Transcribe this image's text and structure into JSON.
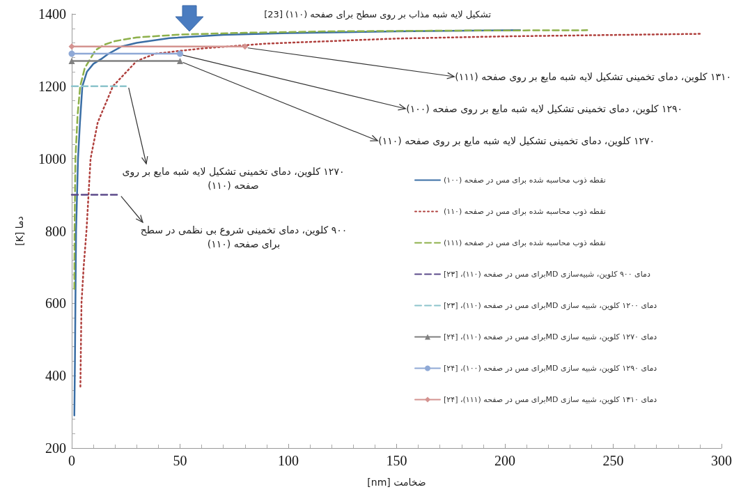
{
  "chart_data": {
    "type": "line",
    "xlabel": "ضخامت [nm]",
    "ylabel": "دما [K]",
    "xlim": [
      0,
      300
    ],
    "xticks": [
      0,
      50,
      100,
      150,
      200,
      250,
      300
    ],
    "ylim": [
      200,
      1400
    ],
    "yticks": [
      200,
      400,
      600,
      800,
      1000,
      1200,
      1400
    ],
    "legend": "right",
    "series": [
      {
        "name": "نقطه ذوب محاسبه شده برای مس در صفحه (۱۰۰)",
        "color": "#3a6ea5",
        "line_style": "solid",
        "marker": "none",
        "x": [
          1.2,
          1.5,
          1.7,
          2,
          2.9,
          3.8,
          4.9,
          7,
          10,
          13.5,
          17,
          23,
          30,
          45,
          70,
          100,
          150,
          207
        ],
        "values": [
          290,
          450,
          600,
          800,
          1000,
          1100,
          1200,
          1240,
          1262,
          1275,
          1290,
          1310,
          1320,
          1333,
          1342,
          1347,
          1352,
          1355
        ]
      },
      {
        "name": "نقطه ذوب محاسبه شده برای مس در صفحه (۱۱۰)",
        "color": "#b0413e",
        "line_style": "dotted",
        "marker": "none",
        "x": [
          4,
          4.5,
          5.5,
          6.8,
          8.7,
          12,
          19,
          30,
          38.6,
          50,
          61,
          90,
          150,
          200,
          290
        ],
        "values": [
          370,
          600,
          700,
          800,
          1000,
          1100,
          1200,
          1270,
          1290,
          1298,
          1305,
          1318,
          1332,
          1338,
          1345
        ]
      },
      {
        "name": "نقطه ذوب محاسبه شده برای مس در صفحه (۱۱۱)",
        "color": "#8db04a",
        "line_style": "dashed",
        "marker": "none",
        "x": [
          1.2,
          1.3,
          1.7,
          2.7,
          3.9,
          6,
          8,
          11,
          15,
          20,
          30,
          50,
          80,
          120,
          180,
          238
        ],
        "values": [
          640,
          800,
          1000,
          1120,
          1200,
          1250,
          1270,
          1300,
          1315,
          1325,
          1335,
          1343,
          1348,
          1352,
          1354,
          1355
        ]
      },
      {
        "name": "دمای ۹۰۰ کلوین، شبیه‌سازی MDبرای مس در صفحه (۱۱۰)، [۲۳]",
        "color": "#5c4a8a",
        "line_style": "dashed",
        "marker": "none",
        "x": [
          0,
          21.5
        ],
        "values": [
          900,
          900
        ]
      },
      {
        "name": "دمای ۱۲۰۰ کلوین، شبیه سازی MDبرای مس در صفحه (۱۱۰)، [۲۳]",
        "color": "#8cc4cc",
        "line_style": "dashed",
        "marker": "none",
        "x": [
          0,
          25
        ],
        "values": [
          1200,
          1200
        ]
      },
      {
        "name": "دمای ۱۲۷۰ کلوین، شبیه سازی MDبرای مس در صفحه (۱۱۰)، [۲۴]",
        "color": "#808080",
        "line_style": "solid",
        "marker": "triangle",
        "x": [
          0,
          50
        ],
        "values": [
          1270,
          1270
        ]
      },
      {
        "name": "دمای ۱۲۹۰ کلوین، شبیه سازی MDبرای مس در صفحه (۱۰۰)، [۲۴]",
        "color": "#8fa9d6",
        "line_style": "solid",
        "marker": "circle",
        "x": [
          0,
          50
        ],
        "values": [
          1290,
          1290
        ]
      },
      {
        "name": "دمای ۱۳۱۰ کلوین، شبیه سازی MDبرای مس در صفحه (۱۱۱)، [۲۴]",
        "color": "#d49390",
        "line_style": "solid",
        "marker": "diamond",
        "x": [
          0,
          80
        ],
        "values": [
          1310,
          1310
        ]
      }
    ],
    "annotations": [
      "تشکیل لایه شبه مذاب بر روی سطح برای صفحه (۱۱۰) [23]",
      {
        "text": "۱۳۱۰ کلوین، دمای تخمینی  تشکیل لایه شبه مایع بر روی صفحه (۱۱۱)",
        "x": 80,
        "y": 1310
      },
      {
        "text": "۱۲۹۰ کلوین، دمای تخمینی  تشکیل لایه شبه مایع بر روی صفحه (۱۰۰)",
        "x": 50,
        "y": 1290
      },
      {
        "text": "۱۲۷۰ کلوین، دمای تخمینی  تشکیل لایه شبه مایع بر روی صفحه (۱۱۰)",
        "x": 50,
        "y": 1270
      },
      {
        "text": "۱۲۷۰ کلوین، دمای تخمینی  تشکیل لایه شبه مایع بر روی صفحه (۱۱۰)",
        "x": 25,
        "y": 1200
      },
      {
        "text": "۹۰۰ کلوین، دمای تخمینی شروع بی نظمی در سطح برای صفحه (۱۱۰)",
        "x": 21.5,
        "y": 900
      }
    ]
  }
}
